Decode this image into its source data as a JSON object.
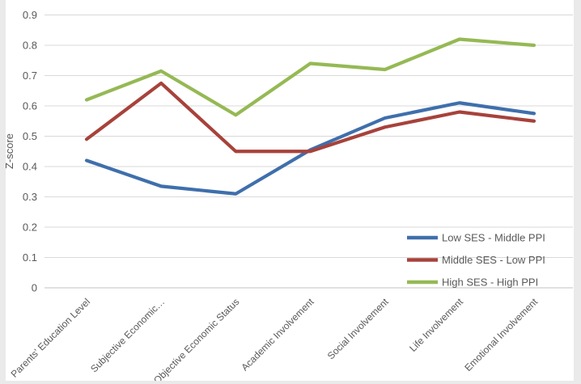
{
  "chart_data": {
    "type": "line",
    "title": "",
    "xlabel": "",
    "ylabel": "Z-score",
    "ylim": [
      0,
      0.9
    ],
    "ytick_step": 0.1,
    "ytick_labels": [
      "0",
      "0.1",
      "0.2",
      "0.3",
      "0.4",
      "0.5",
      "0.6",
      "0.7",
      "0.8",
      "0.9"
    ],
    "grid": true,
    "legend_position": "inside-lower-right",
    "categories": [
      "Parents' Education Level",
      "Subjective Economic…",
      "Objective Economic Status",
      "Academic Involvement",
      "Social Involvement",
      "Life Involvement",
      "Emotional Involvement"
    ],
    "series": [
      {
        "name": "Low SES - Middle PPI",
        "color": "#3f6fac",
        "values": [
          0.42,
          0.335,
          0.31,
          0.455,
          0.56,
          0.61,
          0.575
        ]
      },
      {
        "name": "Middle SES - Low PPI",
        "color": "#a7423b",
        "values": [
          0.49,
          0.675,
          0.45,
          0.45,
          0.53,
          0.58,
          0.55
        ]
      },
      {
        "name": "High SES - High PPI",
        "color": "#95b954",
        "values": [
          0.62,
          0.715,
          0.57,
          0.74,
          0.72,
          0.82,
          0.8
        ]
      }
    ],
    "colors": {
      "gridline": "#d9d9d9",
      "zero_axis": "#c3c3c3",
      "axis_text": "#595959"
    }
  }
}
